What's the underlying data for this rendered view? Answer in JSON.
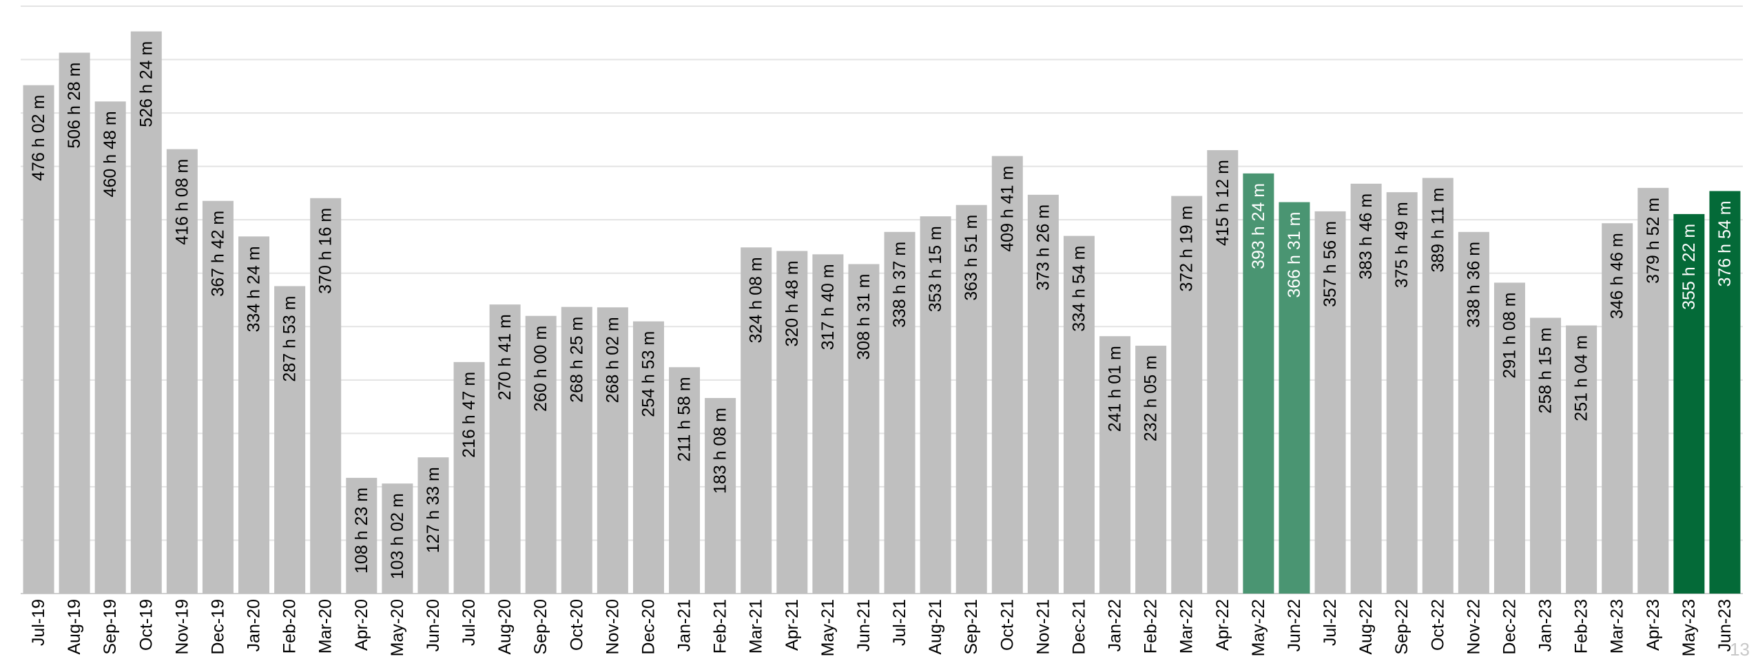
{
  "page_number": "13",
  "colors": {
    "bar_default": "#bfbfbf",
    "bar_highlight_light": "#4a9572",
    "bar_highlight_dark": "#046a38",
    "grid": "#e3e3e3",
    "label_on_gray": "#000000",
    "label_on_green": "#ffffff"
  },
  "chart_data": {
    "type": "bar",
    "title": "",
    "xlabel": "",
    "ylabel": "",
    "unit": "hours",
    "ylim": [
      0,
      550
    ],
    "grid": true,
    "gridline_step": 50,
    "categories": [
      "Jul-19",
      "Aug-19",
      "Sep-19",
      "Oct-19",
      "Nov-19",
      "Dec-19",
      "Jan-20",
      "Feb-20",
      "Mar-20",
      "Apr-20",
      "May-20",
      "Jun-20",
      "Jul-20",
      "Aug-20",
      "Sep-20",
      "Oct-20",
      "Nov-20",
      "Dec-20",
      "Jan-21",
      "Feb-21",
      "Mar-21",
      "Apr-21",
      "May-21",
      "Jun-21",
      "Jul-21",
      "Aug-21",
      "Sep-21",
      "Oct-21",
      "Nov-21",
      "Dec-21",
      "Jan-22",
      "Feb-22",
      "Mar-22",
      "Apr-22",
      "May-22",
      "Jun-22",
      "Jul-22",
      "Aug-22",
      "Sep-22",
      "Oct-22",
      "Nov-22",
      "Dec-22",
      "Jan-23",
      "Feb-23",
      "Mar-23",
      "Apr-23",
      "May-23",
      "Jun-23"
    ],
    "values": [
      476.03,
      506.47,
      460.8,
      526.4,
      416.13,
      367.7,
      334.4,
      287.88,
      370.27,
      108.38,
      103.03,
      127.55,
      216.78,
      270.68,
      260.0,
      268.42,
      268.03,
      254.88,
      211.97,
      183.13,
      324.13,
      320.8,
      317.67,
      308.52,
      338.62,
      353.25,
      363.85,
      409.68,
      373.43,
      334.9,
      241.02,
      232.08,
      372.32,
      415.2,
      393.4,
      366.52,
      357.93,
      383.77,
      375.82,
      389.18,
      338.6,
      291.13,
      258.25,
      251.07,
      346.77,
      379.87,
      355.37,
      376.9
    ],
    "labels": [
      "476 h 02 m",
      "506 h 28 m",
      "460 h 48 m",
      "526 h 24 m",
      "416 h 08 m",
      "367 h 42 m",
      "334 h 24 m",
      "287 h 53 m",
      "370 h 16 m",
      "108 h 23 m",
      "103 h 02 m",
      "127 h 33 m",
      "216 h 47 m",
      "270 h 41 m",
      "260 h 00 m",
      "268 h 25 m",
      "268 h 02 m",
      "254 h 53 m",
      "211 h 58 m",
      "183 h 08 m",
      "324 h 08 m",
      "320 h 48 m",
      "317 h 40 m",
      "308 h 31 m",
      "338 h 37 m",
      "353 h 15 m",
      "363 h 51 m",
      "409 h 41 m",
      "373 h 26 m",
      "334 h 54 m",
      "241 h 01 m",
      "232 h 05 m",
      "372 h 19 m",
      "415 h 12 m",
      "393 h 24 m",
      "366 h 31 m",
      "357 h 56 m",
      "383 h 46 m",
      "375 h 49 m",
      "389 h 11 m",
      "338 h 36 m",
      "291 h 08 m",
      "258 h 15 m",
      "251 h 04 m",
      "346 h 46 m",
      "379 h 52 m",
      "355 h 22 m",
      "376 h 54 m"
    ],
    "highlight_light": [
      "May-22",
      "Jun-22"
    ],
    "highlight_dark": [
      "May-23",
      "Jun-23"
    ]
  }
}
